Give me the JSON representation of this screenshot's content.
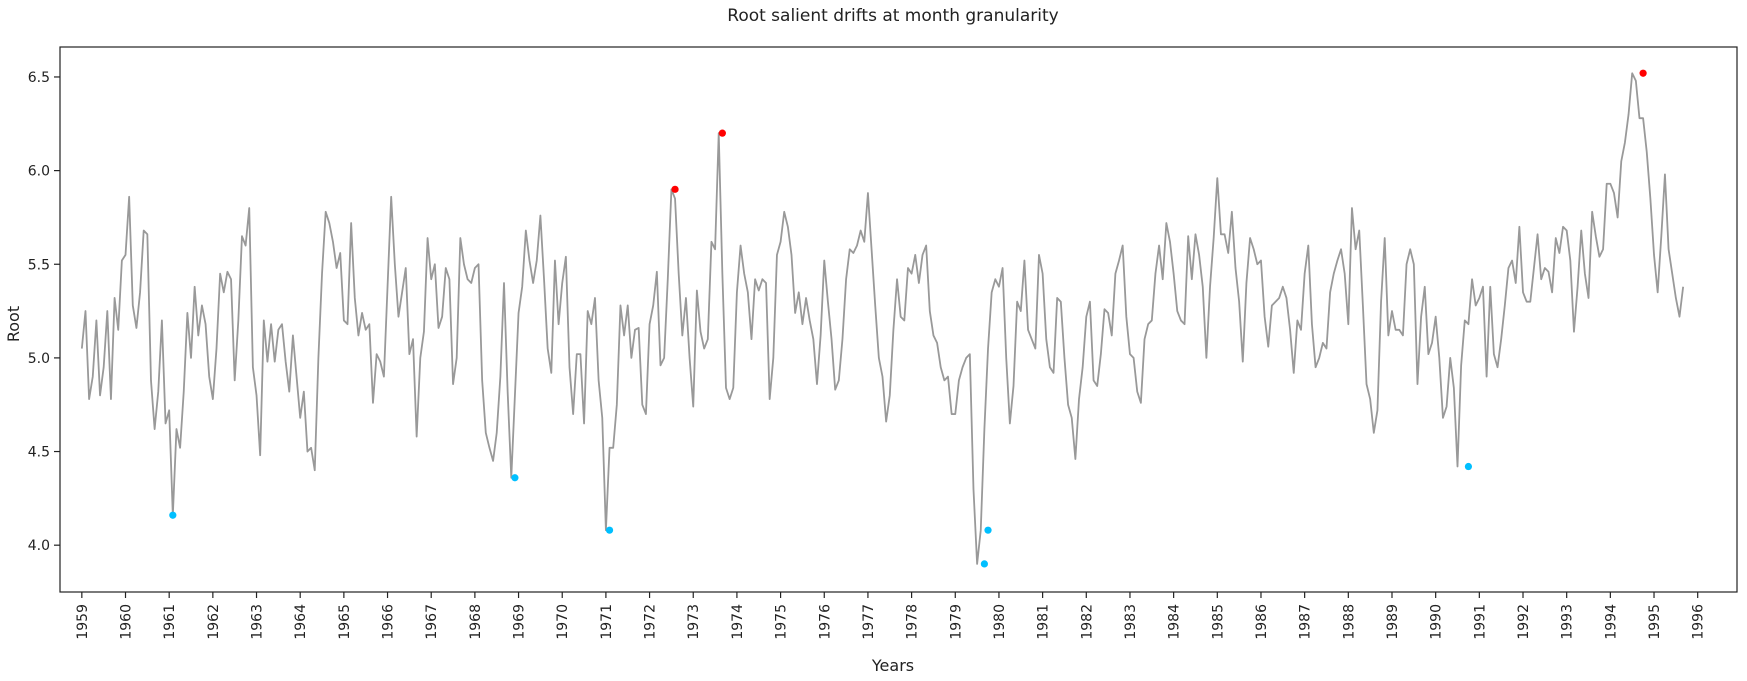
{
  "chart_data": {
    "type": "line",
    "title": "Root salient drifts at month granularity",
    "xlabel": "Years",
    "ylabel": "Root",
    "xlim": [
      1958.5,
      1996.9
    ],
    "ylim": [
      3.75,
      6.66
    ],
    "xticks": [
      1959,
      1960,
      1961,
      1962,
      1963,
      1964,
      1965,
      1966,
      1967,
      1968,
      1969,
      1970,
      1971,
      1972,
      1973,
      1974,
      1975,
      1976,
      1977,
      1978,
      1979,
      1980,
      1981,
      1982,
      1983,
      1984,
      1985,
      1986,
      1987,
      1988,
      1989,
      1990,
      1991,
      1992,
      1993,
      1994,
      1995,
      1996
    ],
    "xtick_labels": [
      "1959",
      "1960",
      "1961",
      "1962",
      "1963",
      "1964",
      "1965",
      "1966",
      "1967",
      "1968",
      "1969",
      "1970",
      "1971",
      "1972",
      "1973",
      "1974",
      "1975",
      "1976",
      "1977",
      "1978",
      "1979",
      "1980",
      "1981",
      "1982",
      "1983",
      "1984",
      "1985",
      "1986",
      "1987",
      "1988",
      "1989",
      "1990",
      "1991",
      "1992",
      "1993",
      "1994",
      "1995",
      "1996"
    ],
    "yticks": [
      4.0,
      4.5,
      5.0,
      5.5,
      6.0,
      6.5
    ],
    "ytick_labels": [
      "4.0",
      "4.5",
      "5.0",
      "5.5",
      "6.0",
      "6.5"
    ],
    "grid": false,
    "line_color": "#999999",
    "high_marker_color": "#ff0000",
    "low_marker_color": "#00bfff",
    "series": [
      {
        "x_start": 1959.0,
        "x_step": 0.0833333,
        "values": [
          5.05,
          5.25,
          4.78,
          4.9,
          5.2,
          4.8,
          4.95,
          5.25,
          4.78,
          5.32,
          5.15,
          5.52,
          5.55,
          5.86,
          5.28,
          5.16,
          5.35,
          5.68,
          5.66,
          4.88,
          4.62,
          4.82,
          5.2,
          4.65,
          4.72,
          4.16,
          4.62,
          4.52,
          4.82,
          5.24,
          5.0,
          5.38,
          5.12,
          5.28,
          5.18,
          4.9,
          4.78,
          5.05,
          5.45,
          5.35,
          5.46,
          5.42,
          4.88,
          5.2,
          5.65,
          5.6,
          5.8,
          4.95,
          4.8,
          4.48,
          5.2,
          4.98,
          5.18,
          4.98,
          5.15,
          5.18,
          4.98,
          4.82,
          5.12,
          4.9,
          4.68,
          4.82,
          4.5,
          4.52,
          4.4,
          5.0,
          5.45,
          5.78,
          5.72,
          5.62,
          5.48,
          5.56,
          5.2,
          5.18,
          5.72,
          5.32,
          5.12,
          5.24,
          5.15,
          5.18,
          4.76,
          5.02,
          4.98,
          4.9,
          5.38,
          5.86,
          5.5,
          5.22,
          5.35,
          5.48,
          5.02,
          5.1,
          4.58,
          5.0,
          5.14,
          5.64,
          5.42,
          5.5,
          5.16,
          5.22,
          5.48,
          5.42,
          4.86,
          5.0,
          5.64,
          5.5,
          5.42,
          5.4,
          5.48,
          5.5,
          4.88,
          4.6,
          4.52,
          4.45,
          4.6,
          4.9,
          5.4,
          4.82,
          4.36,
          4.8,
          5.24,
          5.38,
          5.68,
          5.52,
          5.4,
          5.52,
          5.76,
          5.42,
          5.05,
          4.92,
          5.52,
          5.18,
          5.4,
          5.54,
          4.95,
          4.7,
          5.02,
          5.02,
          4.65,
          5.25,
          5.18,
          5.32,
          4.88,
          4.68,
          4.08,
          4.52,
          4.52,
          4.75,
          5.28,
          5.12,
          5.28,
          5.0,
          5.15,
          5.16,
          4.75,
          4.7,
          5.18,
          5.28,
          5.46,
          4.96,
          5.0,
          5.42,
          5.9,
          5.85,
          5.45,
          5.12,
          5.32,
          5.0,
          4.74,
          5.36,
          5.14,
          5.05,
          5.1,
          5.62,
          5.58,
          6.2,
          5.45,
          4.84,
          4.78,
          4.84,
          5.35,
          5.6,
          5.45,
          5.35,
          5.1,
          5.42,
          5.36,
          5.42,
          5.4,
          4.78,
          5.0,
          5.55,
          5.62,
          5.78,
          5.7,
          5.55,
          5.24,
          5.35,
          5.18,
          5.32,
          5.2,
          5.1,
          4.86,
          5.12,
          5.52,
          5.3,
          5.1,
          4.83,
          4.88,
          5.1,
          5.42,
          5.58,
          5.56,
          5.6,
          5.68,
          5.62,
          5.88,
          5.58,
          5.28,
          5.0,
          4.9,
          4.66,
          4.8,
          5.15,
          5.42,
          5.22,
          5.2,
          5.48,
          5.45,
          5.55,
          5.4,
          5.55,
          5.6,
          5.25,
          5.12,
          5.08,
          4.95,
          4.88,
          4.9,
          4.7,
          4.7,
          4.88,
          4.95,
          5.0,
          5.02,
          4.3,
          3.9,
          4.08,
          4.62,
          5.05,
          5.35,
          5.42,
          5.38,
          5.48,
          5.0,
          4.65,
          4.85,
          5.3,
          5.25,
          5.52,
          5.15,
          5.1,
          5.05,
          5.55,
          5.45,
          5.1,
          4.95,
          4.92,
          5.32,
          5.3,
          5.0,
          4.75,
          4.68,
          4.46,
          4.78,
          4.95,
          5.22,
          5.3,
          4.88,
          4.85,
          5.02,
          5.26,
          5.24,
          5.12,
          5.45,
          5.52,
          5.6,
          5.22,
          5.02,
          5.0,
          4.82,
          4.76,
          5.1,
          5.18,
          5.2,
          5.45,
          5.6,
          5.42,
          5.72,
          5.62,
          5.45,
          5.25,
          5.2,
          5.18,
          5.65,
          5.42,
          5.66,
          5.55,
          5.38,
          5.0,
          5.38,
          5.64,
          5.96,
          5.66,
          5.66,
          5.56,
          5.78,
          5.48,
          5.3,
          4.98,
          5.4,
          5.64,
          5.58,
          5.5,
          5.52,
          5.22,
          5.06,
          5.28,
          5.3,
          5.32,
          5.38,
          5.32,
          5.15,
          4.92,
          5.2,
          5.15,
          5.45,
          5.6,
          5.18,
          4.95,
          5.0,
          5.08,
          5.05,
          5.35,
          5.45,
          5.52,
          5.58,
          5.45,
          5.18,
          5.8,
          5.58,
          5.68,
          5.28,
          4.86,
          4.78,
          4.6,
          4.72,
          5.3,
          5.64,
          5.12,
          5.25,
          5.15,
          5.15,
          5.12,
          5.5,
          5.58,
          5.5,
          4.86,
          5.22,
          5.38,
          5.02,
          5.08,
          5.22,
          5.0,
          4.68,
          4.74,
          5.0,
          4.84,
          4.42,
          4.96,
          5.2,
          5.18,
          5.42,
          5.28,
          5.32,
          5.38,
          4.9,
          5.38,
          5.02,
          4.95,
          5.1,
          5.28,
          5.48,
          5.52,
          5.4,
          5.7,
          5.35,
          5.3,
          5.3,
          5.48,
          5.66,
          5.42,
          5.48,
          5.46,
          5.35,
          5.64,
          5.56,
          5.7,
          5.68,
          5.52,
          5.14,
          5.38,
          5.68,
          5.45,
          5.32,
          5.78,
          5.65,
          5.54,
          5.58,
          5.93,
          5.93,
          5.88,
          5.75,
          6.05,
          6.15,
          6.3,
          6.52,
          6.48,
          6.28,
          6.28,
          6.1,
          5.85,
          5.55,
          5.35,
          5.65,
          5.98,
          5.58,
          5.45,
          5.32,
          5.22,
          5.38
        ]
      }
    ],
    "highlight_high": [
      {
        "x": 1972.5833,
        "y": 5.9
      },
      {
        "x": 1973.6667,
        "y": 6.2
      },
      {
        "x": 1994.75,
        "y": 6.52
      }
    ],
    "highlight_low": [
      {
        "x": 1961.0833,
        "y": 4.16
      },
      {
        "x": 1968.9167,
        "y": 4.36
      },
      {
        "x": 1971.0833,
        "y": 4.08
      },
      {
        "x": 1979.6667,
        "y": 3.9
      },
      {
        "x": 1979.75,
        "y": 4.08
      },
      {
        "x": 1990.75,
        "y": 4.42
      }
    ]
  }
}
